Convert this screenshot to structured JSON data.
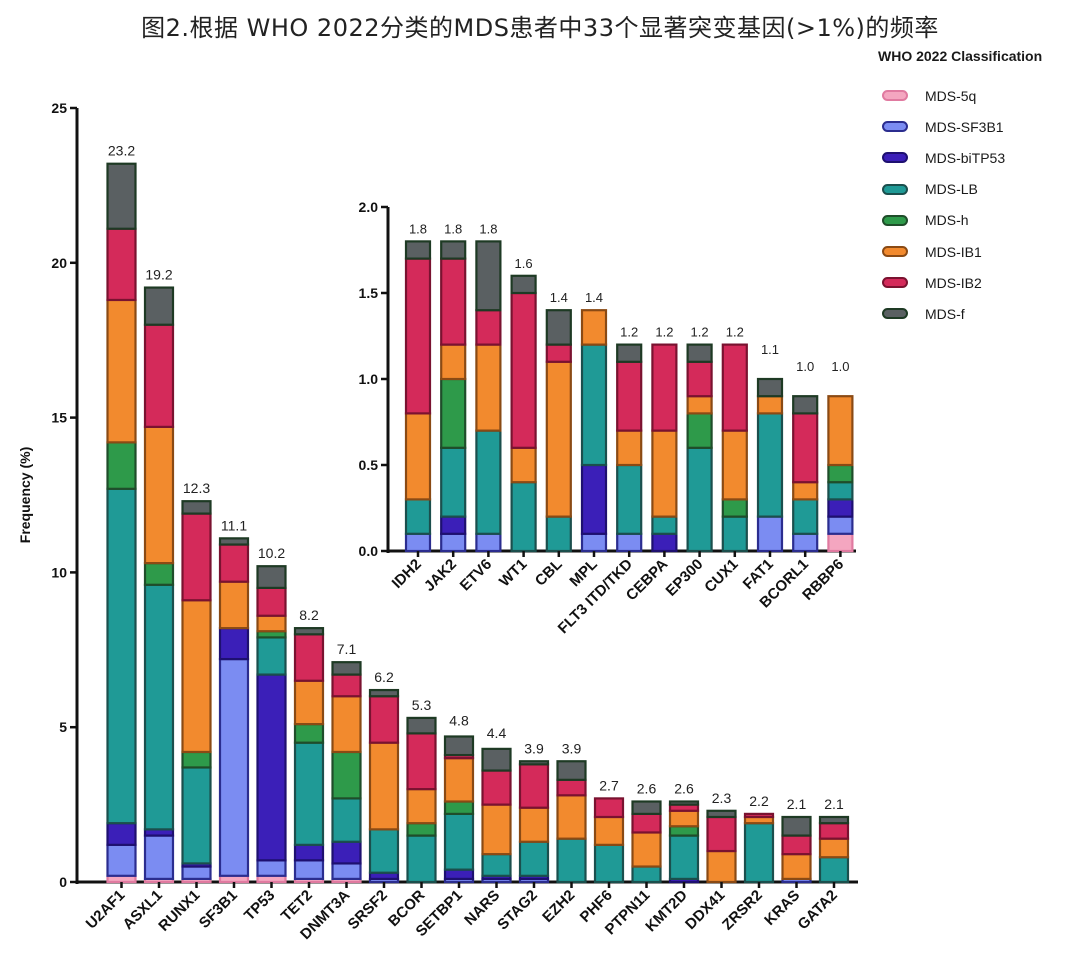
{
  "title": "图2.根据 WHO 2022分类的MDS患者中33个显著突变基因(>1%)的频率",
  "legend": {
    "title": "WHO 2022 Classification",
    "entries": [
      {
        "name": "MDS-5q",
        "color": "#f4a6c0",
        "edge": "#e07aa0"
      },
      {
        "name": "MDS-SF3B1",
        "color": "#7b8cf2",
        "edge": "#2b2d8f"
      },
      {
        "name": "MDS-biTP53",
        "color": "#3b1fb8",
        "edge": "#1e1070"
      },
      {
        "name": "MDS-LB",
        "color": "#1f9a96",
        "edge": "#1b4f4d"
      },
      {
        "name": "MDS-h",
        "color": "#2e9a4a",
        "edge": "#1f4d2a"
      },
      {
        "name": "MDS-IB1",
        "color": "#f28a2e",
        "edge": "#8a4a14"
      },
      {
        "name": "MDS-IB2",
        "color": "#d42a5a",
        "edge": "#7a1230"
      },
      {
        "name": "MDS-f",
        "color": "#5a6062",
        "edge": "#1e3a24"
      }
    ]
  },
  "chart_data": [
    {
      "type": "bar",
      "stacked": true,
      "ylabel": "Frequency (%)",
      "ylim": [
        0,
        25
      ],
      "yticks": [
        "0",
        "5",
        "10",
        "15",
        "20",
        "25"
      ],
      "categories": [
        "U2AF1",
        "ASXL1",
        "RUNX1",
        "SF3B1",
        "TP53",
        "TET2",
        "DNMT3A",
        "SRSF2",
        "BCOR",
        "SETBP1",
        "NARS",
        "STAG2",
        "EZH2",
        "PHF6",
        "PTPN11",
        "KMT2D",
        "DDX41",
        "ZRSR2",
        "KRAS",
        "GATA2"
      ],
      "totals_labels": [
        "23.2",
        "19.2",
        "12.3",
        "11.1",
        "10.2",
        "8.2",
        "7.1",
        "6.2",
        "5.3",
        "4.8",
        "4.4",
        "3.9",
        "3.9",
        "2.7",
        "2.6",
        "2.6",
        "2.3",
        "2.2",
        "2.1",
        "2.1"
      ],
      "series": [
        {
          "name": "MDS-5q",
          "values": [
            0.2,
            0.1,
            0.1,
            0.2,
            0.2,
            0.1,
            0.1,
            0,
            0,
            0,
            0,
            0,
            0,
            0,
            0,
            0,
            0,
            0,
            0,
            0
          ]
        },
        {
          "name": "MDS-SF3B1",
          "values": [
            1.0,
            1.4,
            0.4,
            7.0,
            0.5,
            0.6,
            0.5,
            0.1,
            0,
            0.1,
            0.1,
            0.1,
            0,
            0,
            0,
            0,
            0,
            0,
            0.1,
            0
          ]
        },
        {
          "name": "MDS-biTP53",
          "values": [
            0.7,
            0.2,
            0.1,
            1.0,
            6.0,
            0.5,
            0.7,
            0.2,
            0,
            0.3,
            0.1,
            0.1,
            0,
            0,
            0,
            0.1,
            0,
            0,
            0,
            0
          ]
        },
        {
          "name": "MDS-LB",
          "values": [
            10.8,
            7.9,
            3.1,
            0,
            1.2,
            3.3,
            1.4,
            1.4,
            1.5,
            1.8,
            0.7,
            1.1,
            1.4,
            1.2,
            0.5,
            1.4,
            0,
            1.9,
            0,
            0.8
          ]
        },
        {
          "name": "MDS-h",
          "values": [
            1.5,
            0.7,
            0.5,
            0,
            0.2,
            0.6,
            1.5,
            0,
            0.4,
            0.4,
            0,
            0,
            0,
            0,
            0,
            0.3,
            0,
            0,
            0,
            0
          ]
        },
        {
          "name": "MDS-IB1",
          "values": [
            4.6,
            4.4,
            4.9,
            1.5,
            0.5,
            1.4,
            1.8,
            2.8,
            1.1,
            1.4,
            1.6,
            1.1,
            1.4,
            0.9,
            1.1,
            0.5,
            1.0,
            0.2,
            0.8,
            0.6
          ]
        },
        {
          "name": "MDS-IB2",
          "values": [
            2.3,
            3.3,
            2.8,
            1.2,
            0.9,
            1.5,
            0.7,
            1.5,
            1.8,
            0.1,
            1.1,
            1.4,
            0.5,
            0.6,
            0.6,
            0.2,
            1.1,
            0.1,
            0.6,
            0.5
          ]
        },
        {
          "name": "MDS-f",
          "values": [
            2.1,
            1.2,
            0.4,
            0.2,
            0.7,
            0.2,
            0.4,
            0.2,
            0.5,
            0.6,
            0.7,
            0.1,
            0.6,
            0,
            0.4,
            0.1,
            0.2,
            0,
            0.6,
            0.2
          ]
        }
      ]
    },
    {
      "type": "bar",
      "stacked": true,
      "ylabel": "",
      "ylim": [
        0,
        2.0
      ],
      "yticks": [
        "0.0",
        "0.5",
        "1.0",
        "1.5",
        "2.0"
      ],
      "categories": [
        "IDH2",
        "JAK2",
        "ETV6",
        "WT1",
        "CBL",
        "MPL",
        "FLT3 ITD/TKD",
        "CEBPA",
        "EP300",
        "CUX1",
        "FAT1",
        "BCORL1",
        "RBBP6"
      ],
      "totals_labels": [
        "1.8",
        "1.8",
        "1.8",
        "1.6",
        "1.4",
        "1.4",
        "1.2",
        "1.2",
        "1.2",
        "1.2",
        "1.1",
        "1.0",
        "1.0"
      ],
      "series": [
        {
          "name": "MDS-5q",
          "values": [
            0,
            0,
            0,
            0,
            0,
            0,
            0,
            0,
            0,
            0,
            0,
            0,
            0.1
          ]
        },
        {
          "name": "MDS-SF3B1",
          "values": [
            0.1,
            0.1,
            0.1,
            0,
            0,
            0.1,
            0.1,
            0,
            0,
            0,
            0.2,
            0.1,
            0.1
          ]
        },
        {
          "name": "MDS-biTP53",
          "values": [
            0,
            0.1,
            0,
            0,
            0,
            0.4,
            0,
            0.1,
            0,
            0,
            0,
            0,
            0.1
          ]
        },
        {
          "name": "MDS-LB",
          "values": [
            0.2,
            0.4,
            0.6,
            0.4,
            0.2,
            0.7,
            0.4,
            0.1,
            0.6,
            0.2,
            0.6,
            0.2,
            0.1
          ]
        },
        {
          "name": "MDS-h",
          "values": [
            0,
            0.4,
            0,
            0,
            0,
            0,
            0,
            0,
            0.2,
            0.1,
            0,
            0,
            0.1
          ]
        },
        {
          "name": "MDS-IB1",
          "values": [
            0.5,
            0.2,
            0.5,
            0.2,
            0.9,
            0.2,
            0.2,
            0.5,
            0.1,
            0.4,
            0.1,
            0.1,
            0.4
          ]
        },
        {
          "name": "MDS-IB2",
          "values": [
            0.9,
            0.5,
            0.2,
            0.9,
            0.1,
            0,
            0.4,
            0.5,
            0.2,
            0.5,
            0,
            0.4,
            0
          ]
        },
        {
          "name": "MDS-f",
          "values": [
            0.1,
            0.1,
            0.4,
            0.1,
            0.2,
            0,
            0.1,
            0,
            0.1,
            0,
            0.1,
            0.1,
            0
          ]
        }
      ]
    }
  ]
}
